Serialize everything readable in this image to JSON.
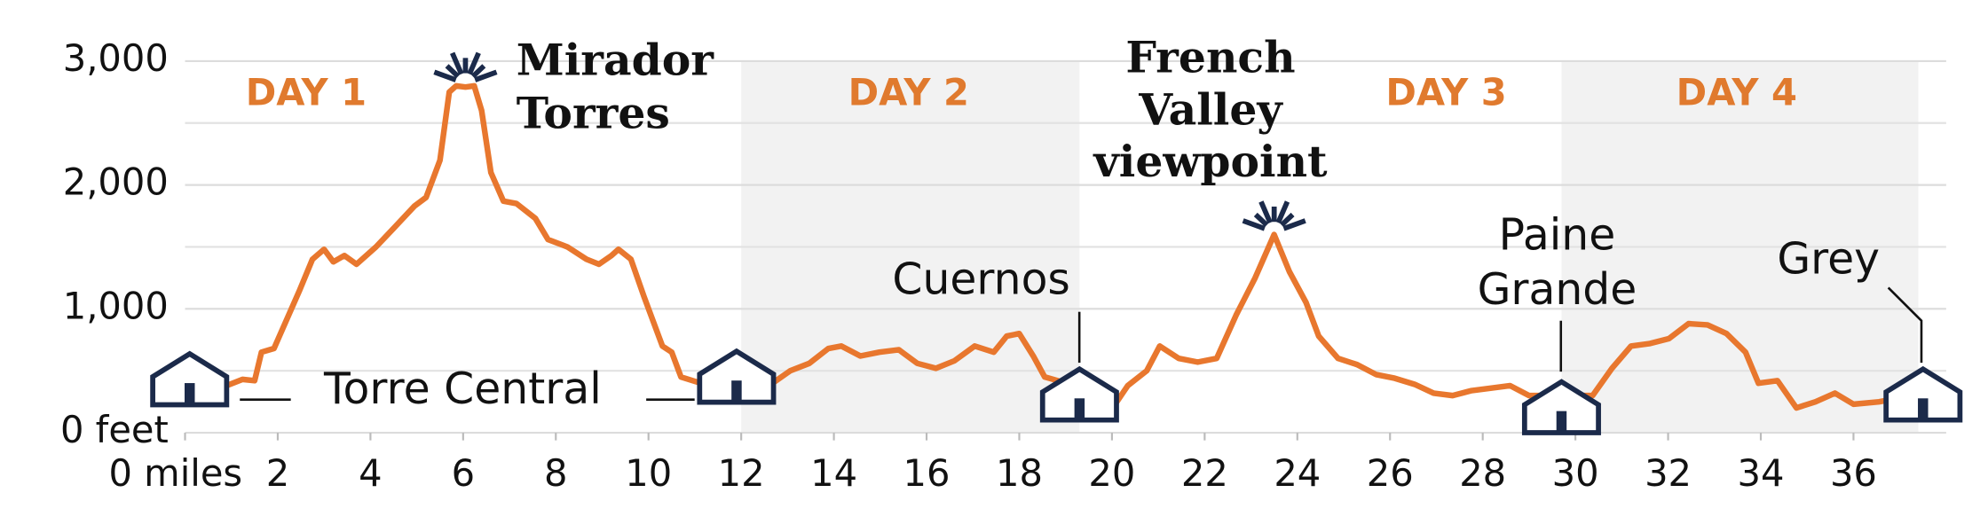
{
  "chart_data": {
    "type": "line",
    "color": "#e8772e",
    "x": [
      0.9,
      1.24,
      1.5,
      1.65,
      1.92,
      2.47,
      2.75,
      3.0,
      3.2,
      3.44,
      3.7,
      4.12,
      4.5,
      4.95,
      5.2,
      5.5,
      5.7,
      5.85,
      6.05,
      6.24,
      6.4,
      6.6,
      6.87,
      7.15,
      7.56,
      7.83,
      8.25,
      8.66,
      8.93,
      9.2,
      9.35,
      9.62,
      9.9,
      10.3,
      10.5,
      10.7,
      11.13,
      12.6,
      13.06,
      13.47,
      13.88,
      14.16,
      14.57,
      14.98,
      15.4,
      15.8,
      16.2,
      16.6,
      17.04,
      17.45,
      17.73,
      18.0,
      18.3,
      18.55,
      18.83,
      20.07,
      20.34,
      20.75,
      21.03,
      21.44,
      21.85,
      22.26,
      22.68,
      23.09,
      23.5,
      23.83,
      24.19,
      24.46,
      24.88,
      25.29,
      25.7,
      26.1,
      26.53,
      26.94,
      27.35,
      27.76,
      28.17,
      28.59,
      29.0,
      30.37,
      30.79,
      31.2,
      31.61,
      32.02,
      32.44,
      32.85,
      33.26,
      33.67,
      33.95,
      34.36,
      34.77,
      35.18,
      35.6,
      36.0,
      36.55,
      36.7
    ],
    "values": [
      380,
      430,
      420,
      650,
      680,
      1150,
      1400,
      1480,
      1380,
      1430,
      1360,
      1500,
      1650,
      1830,
      1900,
      2200,
      2750,
      2800,
      2790,
      2800,
      2600,
      2100,
      1870,
      1850,
      1730,
      1560,
      1500,
      1400,
      1360,
      1430,
      1480,
      1400,
      1100,
      700,
      650,
      450,
      400,
      380,
      500,
      560,
      680,
      700,
      620,
      650,
      670,
      560,
      520,
      580,
      700,
      650,
      780,
      800,
      620,
      450,
      420,
      230,
      380,
      500,
      700,
      600,
      570,
      600,
      950,
      1250,
      1600,
      1300,
      1050,
      780,
      600,
      550,
      470,
      440,
      390,
      320,
      300,
      340,
      360,
      380,
      300,
      300,
      520,
      700,
      720,
      760,
      880,
      870,
      800,
      650,
      400,
      420,
      200,
      250,
      320,
      230,
      250,
      260
    ],
    "xlim": [
      0,
      38
    ],
    "ylim": [
      0,
      3000
    ],
    "xticks": [
      {
        "value": 0,
        "label": "0 miles"
      },
      2,
      4,
      6,
      8,
      10,
      12,
      14,
      16,
      18,
      20,
      22,
      24,
      26,
      28,
      30,
      32,
      34,
      36
    ],
    "yticks": [
      {
        "value": 0,
        "label": "0 feet"
      },
      {
        "value": 1000,
        "label": "1,000"
      },
      {
        "value": 2000,
        "label": "2,000"
      },
      {
        "value": 3000,
        "label": "3,000"
      }
    ],
    "minor_yticks": [
      500,
      1500,
      2500
    ],
    "grid": true,
    "days": [
      {
        "label": "DAY 1",
        "start": 0,
        "end": 12,
        "shaded": false
      },
      {
        "label": "DAY 2",
        "start": 12,
        "end": 19.3,
        "shaded": true
      },
      {
        "label": "DAY 3",
        "start": 19.3,
        "end": 29.7,
        "shaded": false
      },
      {
        "label": "DAY 4",
        "start": 29.7,
        "end": 37.4,
        "shaded": true
      }
    ],
    "huts": [
      {
        "label": [
          "Torre Central"
        ],
        "x": [
          0.1,
          11.9
        ]
      },
      {
        "label": [
          "Cuernos"
        ],
        "x": [
          19.3
        ]
      },
      {
        "label": [
          "Paine",
          "Grande"
        ],
        "x": [
          29.7
        ]
      },
      {
        "label": [
          "Grey"
        ],
        "x": [
          37.5
        ]
      }
    ],
    "viewpoints": [
      {
        "label": [
          "Mirador",
          "Torres"
        ],
        "x": 6.05,
        "elevation": 2820
      },
      {
        "label": [
          "French",
          "Valley",
          "viewpoint"
        ],
        "x": 23.5,
        "elevation": 1620
      }
    ]
  }
}
